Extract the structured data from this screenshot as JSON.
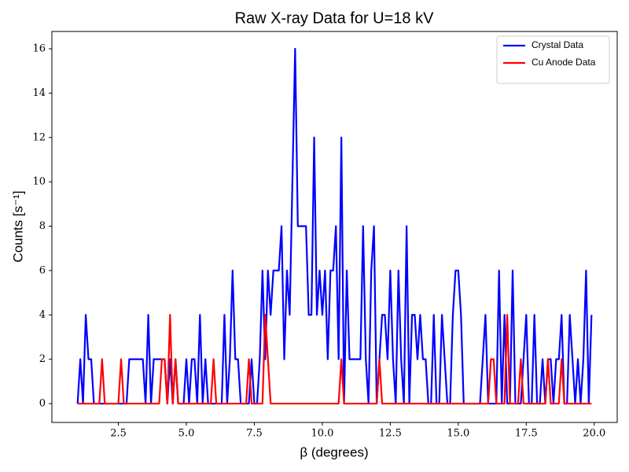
{
  "chart_data": {
    "type": "line",
    "title": "Raw X-ray Data for U=18 kV",
    "x_label": "β (degrees)",
    "y_label": "Counts [s⁻¹]",
    "x": [
      1.0,
      1.1,
      1.2,
      1.3,
      1.4,
      1.5,
      1.6,
      1.7,
      1.8,
      1.9,
      2.0,
      2.1,
      2.2,
      2.3,
      2.4,
      2.5,
      2.6,
      2.7,
      2.8,
      2.9,
      3.0,
      3.1,
      3.2,
      3.3,
      3.4,
      3.5,
      3.6,
      3.7,
      3.8,
      3.9,
      4.0,
      4.1,
      4.2,
      4.3,
      4.4,
      4.5,
      4.6,
      4.7,
      4.8,
      4.9,
      5.0,
      5.1,
      5.2,
      5.3,
      5.4,
      5.5,
      5.6,
      5.7,
      5.8,
      5.9,
      6.0,
      6.1,
      6.2,
      6.3,
      6.4,
      6.5,
      6.6,
      6.7,
      6.8,
      6.9,
      7.0,
      7.1,
      7.2,
      7.3,
      7.4,
      7.5,
      7.6,
      7.7,
      7.8,
      7.9,
      8.0,
      8.1,
      8.2,
      8.3,
      8.4,
      8.5,
      8.6,
      8.7,
      8.8,
      8.9,
      9.0,
      9.1,
      9.2,
      9.3,
      9.4,
      9.5,
      9.6,
      9.7,
      9.8,
      9.9,
      10.0,
      10.1,
      10.2,
      10.3,
      10.4,
      10.5,
      10.6,
      10.7,
      10.8,
      10.9,
      11.0,
      11.1,
      11.2,
      11.3,
      11.4,
      11.5,
      11.6,
      11.7,
      11.8,
      11.9,
      12.0,
      12.1,
      12.2,
      12.3,
      12.4,
      12.5,
      12.6,
      12.7,
      12.8,
      12.9,
      13.0,
      13.1,
      13.2,
      13.3,
      13.4,
      13.5,
      13.6,
      13.7,
      13.8,
      13.9,
      14.0,
      14.1,
      14.2,
      14.3,
      14.4,
      14.5,
      14.6,
      14.7,
      14.8,
      14.9,
      15.0,
      15.1,
      15.2,
      15.3,
      15.4,
      15.5,
      15.6,
      15.7,
      15.8,
      15.9,
      16.0,
      16.1,
      16.2,
      16.3,
      16.4,
      16.5,
      16.6,
      16.7,
      16.8,
      16.9,
      17.0,
      17.1,
      17.2,
      17.3,
      17.4,
      17.5,
      17.6,
      17.7,
      17.8,
      17.9,
      18.0,
      18.1,
      18.2,
      18.3,
      18.4,
      18.5,
      18.6,
      18.7,
      18.8,
      18.9,
      19.0,
      19.1,
      19.2,
      19.3,
      19.4,
      19.5,
      19.6,
      19.7,
      19.8,
      19.9
    ],
    "series": [
      {
        "name": "Crystal Data",
        "color": "#0000ff",
        "values": [
          0,
          2,
          0,
          4,
          2,
          2,
          0,
          0,
          0,
          0,
          0,
          0,
          0,
          0,
          0,
          0,
          0,
          0,
          0,
          2,
          2,
          2,
          2,
          2,
          2,
          0,
          4,
          0,
          2,
          2,
          2,
          2,
          2,
          0,
          2,
          0,
          2,
          0,
          0,
          0,
          2,
          0,
          2,
          2,
          0,
          4,
          0,
          2,
          0,
          0,
          0,
          0,
          0,
          0,
          4,
          0,
          2,
          6,
          2,
          2,
          0,
          0,
          0,
          0,
          2,
          0,
          0,
          2,
          6,
          2,
          6,
          4,
          6,
          6,
          6,
          8,
          2,
          6,
          4,
          10,
          16,
          8,
          8,
          8,
          8,
          4,
          4,
          12,
          4,
          6,
          4,
          6,
          2,
          6,
          6,
          8,
          2,
          12,
          0,
          6,
          2,
          2,
          2,
          2,
          2,
          8,
          2,
          0,
          6,
          8,
          0,
          2,
          4,
          4,
          2,
          6,
          2,
          0,
          6,
          2,
          0,
          8,
          0,
          4,
          4,
          2,
          4,
          2,
          2,
          0,
          0,
          4,
          0,
          0,
          4,
          2,
          0,
          0,
          4,
          6,
          6,
          4,
          0,
          0,
          0,
          0,
          0,
          0,
          0,
          2,
          4,
          0,
          0,
          0,
          0,
          6,
          0,
          4,
          0,
          0,
          6,
          0,
          0,
          0,
          2,
          4,
          0,
          0,
          4,
          0,
          0,
          2,
          0,
          2,
          2,
          0,
          2,
          2,
          4,
          0,
          0,
          4,
          2,
          0,
          2,
          0,
          2,
          6,
          0,
          4
        ]
      },
      {
        "name": "Cu Anode Data",
        "color": "#ff0000",
        "values": [
          0,
          0,
          0,
          0,
          0,
          0,
          0,
          0,
          0,
          2,
          0,
          0,
          0,
          0,
          0,
          0,
          2,
          0,
          0,
          0,
          0,
          0,
          0,
          0,
          0,
          0,
          0,
          0,
          0,
          0,
          0,
          2,
          2,
          0,
          4,
          0,
          2,
          0,
          0,
          0,
          0,
          0,
          0,
          0,
          0,
          0,
          0,
          0,
          0,
          0,
          2,
          0,
          0,
          0,
          0,
          0,
          0,
          0,
          0,
          0,
          0,
          0,
          0,
          2,
          0,
          0,
          0,
          0,
          0,
          4,
          2,
          0,
          0,
          0,
          0,
          0,
          0,
          0,
          0,
          0,
          0,
          0,
          0,
          0,
          0,
          0,
          0,
          0,
          0,
          0,
          0,
          0,
          0,
          0,
          0,
          0,
          0,
          2,
          0,
          0,
          0,
          0,
          0,
          0,
          0,
          0,
          0,
          0,
          0,
          0,
          0,
          2,
          0,
          0,
          0,
          0,
          0,
          0,
          0,
          0,
          0,
          0,
          0,
          0,
          0,
          0,
          0,
          0,
          0,
          0,
          0,
          0,
          0,
          0,
          0,
          0,
          0,
          0,
          0,
          0,
          0,
          0,
          0,
          0,
          0,
          0,
          0,
          0,
          0,
          0,
          0,
          0,
          2,
          2,
          0,
          0,
          0,
          0,
          4,
          0,
          0,
          0,
          0,
          2,
          0,
          0,
          0,
          0,
          0,
          0,
          0,
          0,
          0,
          2,
          0,
          0,
          0,
          0,
          2,
          0,
          0,
          0,
          0,
          0,
          0,
          0,
          0,
          0,
          0,
          0
        ]
      }
    ],
    "xlim": [
      0.055,
      20.845
    ],
    "ylim": [
      -0.85,
      16.78
    ],
    "xticks": [
      2.5,
      {
        "value": 5,
        "label": "5.0"
      },
      7.5,
      {
        "value": 10,
        "label": "10.0"
      },
      12.5,
      {
        "value": 15,
        "label": "15.0"
      },
      17.5,
      {
        "value": 20,
        "label": "20.0"
      }
    ],
    "yticks": [
      0,
      2,
      4,
      6,
      8,
      10,
      12,
      14,
      16
    ],
    "legend": "upper right"
  }
}
